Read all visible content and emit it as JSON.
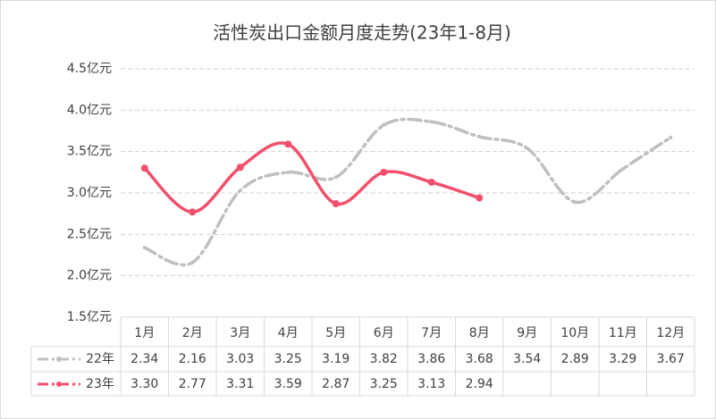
{
  "chart_data": {
    "type": "line",
    "title": "活性炭出口金额月度走势(23年1-8月)",
    "categories": [
      "1月",
      "2月",
      "3月",
      "4月",
      "5月",
      "6月",
      "7月",
      "8月",
      "9月",
      "10月",
      "11月",
      "12月"
    ],
    "series": [
      {
        "name": "22年",
        "color": "#bfbfbf",
        "values": [
          2.34,
          2.16,
          3.03,
          3.25,
          3.19,
          3.82,
          3.86,
          3.68,
          3.54,
          2.89,
          3.29,
          3.67
        ],
        "value_labels": [
          "2.34",
          "2.16",
          "3.03",
          "3.25",
          "3.19",
          "3.82",
          "3.86",
          "3.68",
          "3.54",
          "2.89",
          "3.29",
          "3.67"
        ]
      },
      {
        "name": "23年",
        "color": "#f24f6c",
        "values": [
          3.3,
          2.77,
          3.31,
          3.59,
          2.87,
          3.25,
          3.13,
          2.94,
          null,
          null,
          null,
          null
        ],
        "value_labels": [
          "3.30",
          "2.77",
          "3.31",
          "3.59",
          "2.87",
          "3.25",
          "3.13",
          "2.94",
          null,
          null,
          null,
          null
        ]
      }
    ],
    "ylim": [
      1.5,
      4.5
    ],
    "yticks": [
      {
        "value": 1.5,
        "label": "1.5亿元"
      },
      {
        "value": 2.0,
        "label": "2.0亿元"
      },
      {
        "value": 2.5,
        "label": "2.5亿元"
      },
      {
        "value": 3.0,
        "label": "3.0亿元"
      },
      {
        "value": 3.5,
        "label": "3.5亿元"
      },
      {
        "value": 4.0,
        "label": "4.0亿元"
      },
      {
        "value": 4.5,
        "label": "4.5亿元"
      }
    ],
    "grid": true
  }
}
